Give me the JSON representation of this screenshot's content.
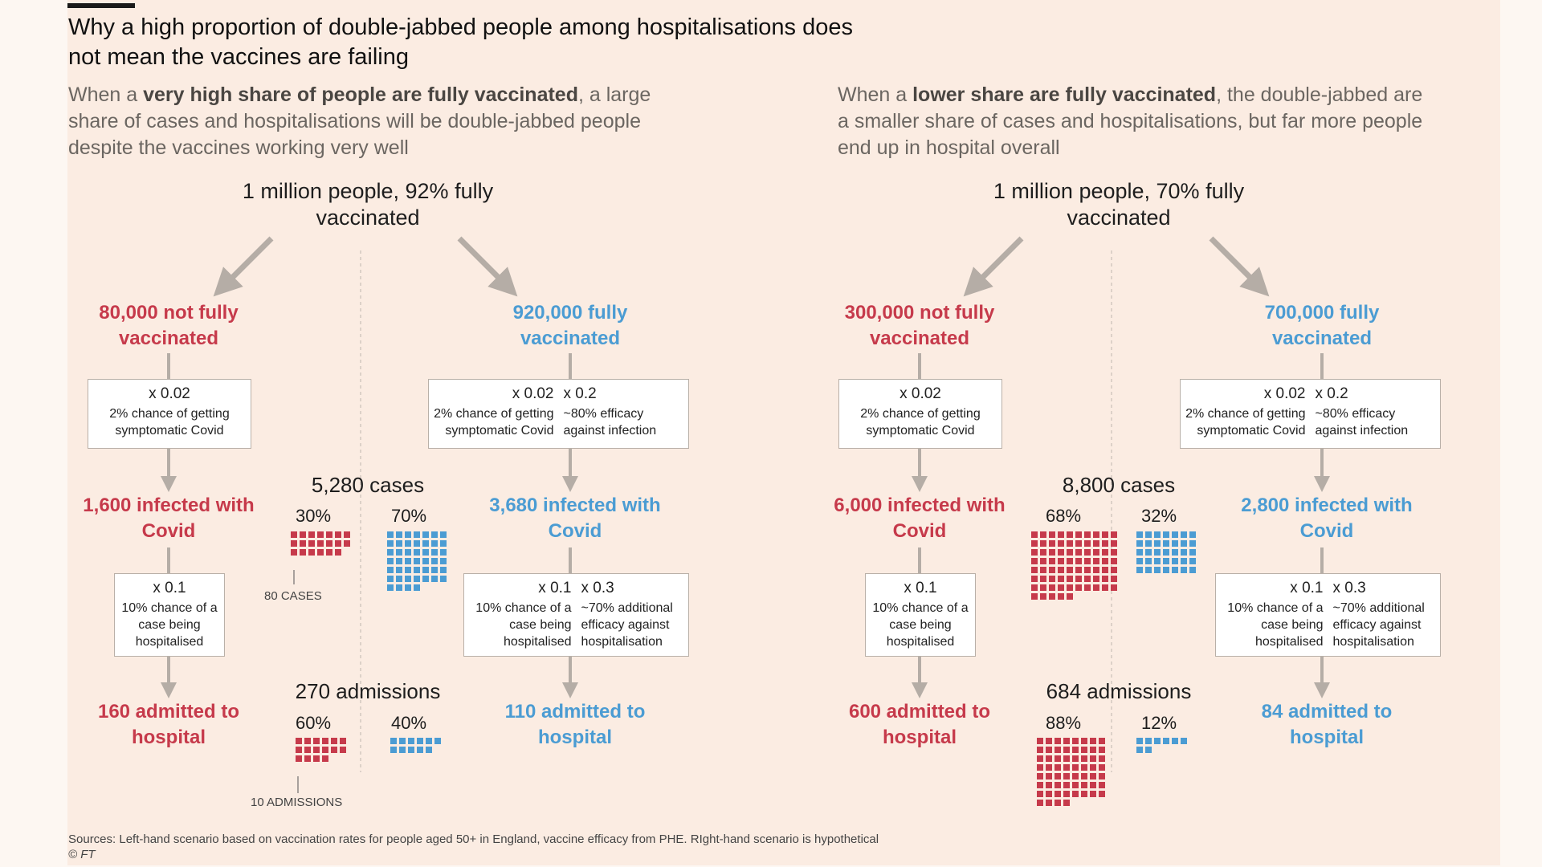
{
  "title": "Why a high proportion of double-jabbed people among hospitalisations does not mean the vaccines are failing",
  "left": {
    "subtitle_pre": "When a ",
    "subtitle_bold": "very high share of people are fully vaccinated",
    "subtitle_post": ", a large share of cases and hospitalisations will be double-jabbed people despite the vaccines working very well",
    "root": "1 million people, 92% fully vaccinated",
    "unvax_group": "80,000 not fully vaccinated",
    "vax_group": "920,000 fully vaccinated",
    "unvax_box1": {
      "mult": "x 0.02",
      "text": "2% chance of getting symptomatic Covid"
    },
    "vax_box1": {
      "mult_a": "x 0.02",
      "text_a": "2% chance of getting symptomatic Covid",
      "mult_b": "x 0.2",
      "text_b": "~80% efficacy against infection"
    },
    "unvax_infected": "1,600 infected with Covid",
    "vax_infected": "3,680 infected with Covid",
    "unvax_box2": {
      "mult": "x 0.1",
      "text": "10% chance of a case being hospitalised"
    },
    "vax_box2": {
      "mult_a": "x 0.1",
      "text_a": "10% chance of a case being hospitalised",
      "mult_b": "x 0.3",
      "text_b": "~70% additional efficacy against hospitalisation"
    },
    "unvax_admitted": "160 admitted to hospital",
    "vax_admitted": "110 admitted to hospital",
    "cases_total": "5,280 cases",
    "cases_unvax_pct": "30%",
    "cases_vax_pct": "70%",
    "cases_note": "80 CASES",
    "adm_total": "270 admissions",
    "adm_unvax_pct": "60%",
    "adm_vax_pct": "40%",
    "adm_note": "10 ADMISSIONS"
  },
  "right": {
    "subtitle_pre": "When a ",
    "subtitle_bold": "lower share are fully vaccinated",
    "subtitle_post": ", the double-jabbed are a smaller share of cases and hospitalisations, but far more people end up in hospital overall",
    "root": "1 million people, 70% fully vaccinated",
    "unvax_group": "300,000 not fully vaccinated",
    "vax_group": "700,000 fully vaccinated",
    "unvax_box1": {
      "mult": "x 0.02",
      "text": "2% chance of getting symptomatic Covid"
    },
    "vax_box1": {
      "mult_a": "x 0.02",
      "text_a": "2% chance of getting symptomatic Covid",
      "mult_b": "x 0.2",
      "text_b": "~80% efficacy against infection"
    },
    "unvax_infected": "6,000 infected with Covid",
    "vax_infected": "2,800 infected with Covid",
    "unvax_box2": {
      "mult": "x 0.1",
      "text": "10% chance of a case being hospitalised"
    },
    "vax_box2": {
      "mult_a": "x 0.1",
      "text_a": "10% chance of a case being hospitalised",
      "mult_b": "x 0.3",
      "text_b": "~70% additional efficacy against hospitalisation"
    },
    "unvax_admitted": "600 admitted to hospital",
    "vax_admitted": "84 admitted to hospital",
    "cases_total": "8,800 cases",
    "cases_unvax_pct": "68%",
    "cases_vax_pct": "32%",
    "adm_total": "684 admissions",
    "adm_unvax_pct": "88%",
    "adm_vax_pct": "12%"
  },
  "waffles": {
    "left_cases_unvax": 20,
    "left_cases_vax": 46,
    "left_adm_unvax": 16,
    "left_adm_vax": 11,
    "right_cases_unvax": 75,
    "right_cases_vax": 35,
    "right_adm_unvax": 60,
    "right_adm_vax": 8
  },
  "colors": {
    "unvaccinated": "#c63a4b",
    "vaccinated": "#4b9cd3",
    "arrow": "#b5ada6"
  },
  "source": "Sources: Left-hand scenario based on vaccination rates for people aged 50+ in England, vaccine efficacy from PHE. RIght-hand scenario is hypothetical",
  "credit": "© FT"
}
